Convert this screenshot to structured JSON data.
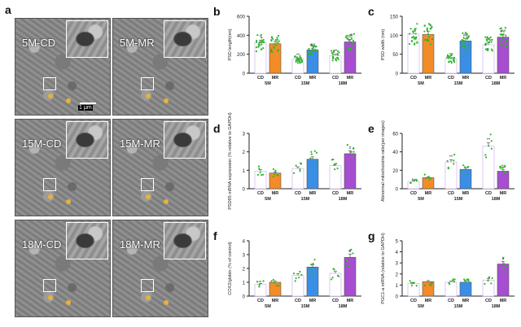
{
  "panel_letters": {
    "a": "a",
    "b": "b",
    "c": "c",
    "d": "d",
    "e": "e",
    "f": "f",
    "g": "g"
  },
  "em_images": [
    {
      "name": "5M-CD"
    },
    {
      "name": "5M-MR"
    },
    {
      "name": "15M-CD"
    },
    {
      "name": "15M-MR"
    },
    {
      "name": "18M-CD"
    },
    {
      "name": "18M-MR"
    }
  ],
  "scale_bar": "1 μm",
  "colors": {
    "CD": "#ffffff",
    "MR_5M": "#f28c28",
    "MR_15M": "#3a8ee6",
    "MR_18M": "#a64dd1",
    "dots": "#2db52d",
    "edge": "#888888"
  },
  "chart_data": [
    {
      "id": "b",
      "type": "bar",
      "ylabel": "PSD length(nm)",
      "ylim": [
        0,
        600
      ],
      "yticks": [
        0,
        200,
        400,
        600
      ],
      "groups": [
        "5M",
        "15M",
        "18M"
      ],
      "sub": [
        "CD",
        "MR"
      ],
      "values": [
        [
          320,
          310
        ],
        [
          148,
          245
        ],
        [
          185,
          330
        ]
      ],
      "marks": [
        [
          "*",
          ""
        ],
        [
          "**",
          "##"
        ],
        [
          "**",
          "##"
        ]
      ]
    },
    {
      "id": "c",
      "type": "bar",
      "ylabel": "PSD width (nm)",
      "ylim": [
        0,
        150
      ],
      "yticks": [
        0,
        50,
        100,
        150
      ],
      "groups": [
        "5M",
        "15M",
        "18M"
      ],
      "sub": [
        "CD",
        "MR"
      ],
      "values": [
        [
          103,
          102
        ],
        [
          38,
          85
        ],
        [
          75,
          95
        ]
      ],
      "marks": [
        [
          "",
          ""
        ],
        [
          "**",
          "##"
        ],
        [
          "**",
          "##"
        ]
      ]
    },
    {
      "id": "d",
      "type": "bar",
      "ylabel": "PSD95 mRNA expression (% relative to GAPDH)",
      "ylim": [
        0,
        3
      ],
      "yticks": [
        0,
        1,
        2,
        3
      ],
      "groups": [
        "5M",
        "15M",
        "18M"
      ],
      "sub": [
        "CD",
        "MR"
      ],
      "values": [
        [
          0.95,
          0.85
        ],
        [
          1.1,
          1.6
        ],
        [
          1.25,
          1.9
        ]
      ],
      "marks": [
        [
          "",
          ""
        ],
        [
          "",
          ""
        ],
        [
          "",
          "#"
        ]
      ]
    },
    {
      "id": "e",
      "type": "bar",
      "ylabel": "Abnormal mitochondria ratio(per images)",
      "ylim": [
        0,
        60
      ],
      "yticks": [
        0,
        20,
        40,
        60
      ],
      "groups": [
        "5M",
        "15M",
        "18M"
      ],
      "sub": [
        "CD",
        "MR"
      ],
      "values": [
        [
          8,
          12
        ],
        [
          29,
          21
        ],
        [
          46,
          19
        ]
      ],
      "marks": [
        [
          "",
          ""
        ],
        [
          "**",
          ""
        ],
        [
          "**",
          "##"
        ]
      ]
    },
    {
      "id": "f",
      "type": "bar",
      "ylabel": "COX2/globin (% of control)",
      "ylim": [
        0,
        4
      ],
      "yticks": [
        0,
        1,
        2,
        3,
        4
      ],
      "groups": [
        "5M",
        "15M",
        "18M"
      ],
      "sub": [
        "CD",
        "MR"
      ],
      "values": [
        [
          0.85,
          1.0
        ],
        [
          1.5,
          2.1
        ],
        [
          1.65,
          2.8
        ]
      ],
      "marks": [
        [
          "",
          ""
        ],
        [
          "",
          ""
        ],
        [
          "",
          "#"
        ]
      ]
    },
    {
      "id": "g",
      "type": "bar",
      "ylabel": "PGC1-a mRNA (relative to GAPDH)",
      "ylim": [
        0,
        5
      ],
      "yticks": [
        0,
        1,
        2,
        3,
        4,
        5
      ],
      "groups": [
        "5M",
        "15M",
        "18M"
      ],
      "sub": [
        "CD",
        "MR"
      ],
      "values": [
        [
          1.15,
          1.3
        ],
        [
          1.25,
          1.25
        ],
        [
          1.45,
          2.9
        ]
      ],
      "marks": [
        [
          "",
          ""
        ],
        [
          "",
          ""
        ],
        [
          "",
          "#"
        ]
      ]
    }
  ]
}
